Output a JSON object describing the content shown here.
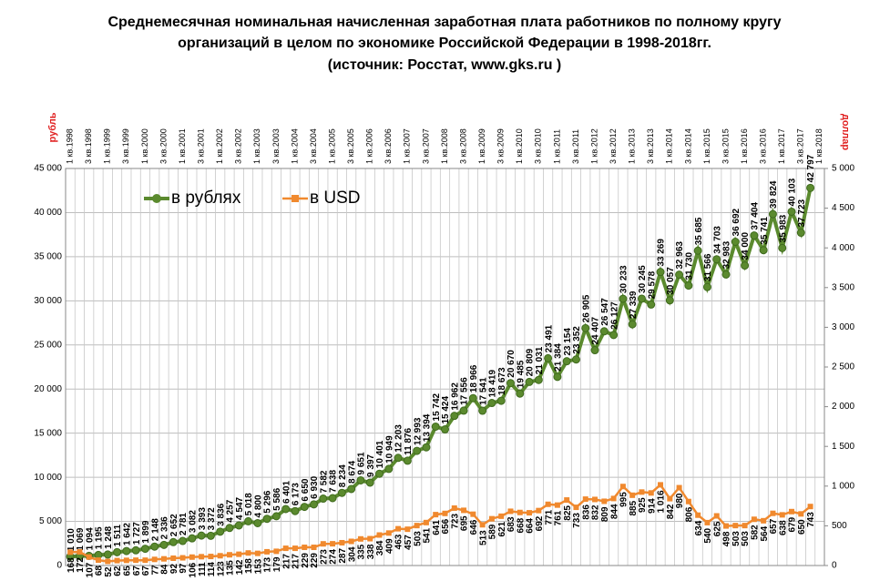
{
  "chart_data": {
    "type": "line",
    "title": [
      "Среднемесячная номинальная начисленная заработная  плата работников по полному кругу",
      "организаций в целом по экономике Российской Федерации в 1998-2018гг.",
      "(источник: Росстат,  www.gks.ru )"
    ],
    "ylabel": "рубль",
    "y2label": "доллар",
    "categories": [
      "1 кв.1998",
      null,
      "3 кв.1998",
      null,
      "1 кв.1999",
      null,
      "3 кв.1999",
      null,
      "1 кв.2000",
      null,
      "3 кв.2000",
      null,
      "1 кв.2001",
      null,
      "3 кв.2001",
      null,
      "1 кв.2002",
      null,
      "3 кв.2002",
      null,
      "1 кв.2003",
      null,
      "3 кв.2003",
      null,
      "1 кв.2004",
      null,
      "3 кв.2004",
      null,
      "1 кв.2005",
      null,
      "3 кв.2005",
      null,
      "1 кв.2006",
      null,
      "3 кв.2006",
      null,
      "1 кв.2007",
      null,
      "3 кв.2007",
      null,
      "1 кв.2008",
      null,
      "3 кв.2008",
      null,
      "1 кв.2009",
      null,
      "3 кв.2009",
      null,
      "1 кв.2010",
      null,
      "3 кв.2010",
      null,
      "1 кв.2011",
      null,
      "3 кв.2011",
      null,
      "1 кв.2012",
      null,
      "3 кв.2012",
      null,
      "1 кв.2013",
      null,
      "3 кв.2013",
      null,
      "1 кв.2014",
      null,
      "3 кв.2014",
      null,
      "1 кв.2015",
      null,
      "3 кв.2015",
      null,
      "1 кв.2016",
      null,
      "3 кв.2016",
      null,
      "1 кв.2017",
      null,
      "3 кв.2017",
      null,
      "1 кв.2018"
    ],
    "series": [
      {
        "name": "в рублях",
        "color": "#5b8a2e",
        "values": [
          1010,
          1069,
          1094,
          1195,
          1248,
          1511,
          1642,
          1727,
          1899,
          2148,
          2336,
          2652,
          2781,
          3082,
          3393,
          3372,
          3836,
          4257,
          4547,
          5018,
          4800,
          5296,
          5586,
          6401,
          6173,
          6650,
          6930,
          7582,
          7638,
          8234,
          8674,
          9651,
          9397,
          10401,
          10949,
          12203,
          11876,
          12993,
          13394,
          15742,
          15424,
          16962,
          17556,
          18966,
          17541,
          18419,
          18673,
          20670,
          19485,
          20809,
          21031,
          23491,
          21384,
          23154,
          23352,
          26905,
          24407,
          26547,
          26127,
          30233,
          27339,
          30245,
          29578,
          33269,
          30057,
          32963,
          31730,
          35685,
          31566,
          34703,
          32983,
          36692,
          34000,
          37404,
          35741,
          39824,
          35983,
          40103,
          37723,
          42797,
          null
        ],
        "value_labels": [
          "1 010",
          "1 069",
          "1 094",
          "1 195",
          "1 248",
          "1 511",
          "1 642",
          "1 727",
          "1 899",
          "2 148",
          "2 336",
          "2 652",
          "2 781",
          "3 082",
          "3 393",
          "3 372",
          "3 836",
          "4 257",
          "4 547",
          "5 018",
          "4 800",
          "5 296",
          "5 586",
          "6 401",
          "6 173",
          "6 650",
          "6 930",
          "7 582",
          "7 638",
          "8 234",
          "8 674",
          "9 651",
          "9 397",
          "10 401",
          "10 949",
          "12 203",
          "11 876",
          "12 993",
          "13 394",
          "15 742",
          "15 424",
          "16 962",
          "17 556",
          "18 966",
          "17 541",
          "18 419",
          "18 673",
          "20 670",
          "19 485",
          "20 809",
          "21 031",
          "23 491",
          "21 384",
          "23 154",
          "23 352",
          "26 905",
          "24 407",
          "26 547",
          "26 127",
          "30 233",
          "27 339",
          "30 245",
          "29 578",
          "33 269",
          "30 057",
          "32 963",
          "31 730",
          "35 685",
          "31 566",
          "34 703",
          "32 983",
          "36 692",
          "34 000",
          "37 404",
          "35 741",
          "39 824",
          "35 983",
          "40 103",
          "37 723",
          "42 797",
          null
        ]
      },
      {
        "name": "в USD",
        "color": "#f0892e",
        "axis": "y2",
        "values": [
          168,
          172,
          107,
          68,
          52,
          62,
          65,
          67,
          67,
          77,
          84,
          92,
          97,
          106,
          111,
          114,
          123,
          135,
          142,
          158,
          153,
          173,
          179,
          217,
          217,
          229,
          229,
          273,
          274,
          287,
          304,
          335,
          338,
          384,
          409,
          463,
          457,
          503,
          541,
          641,
          656,
          723,
          695,
          646,
          513,
          589,
          621,
          683,
          668,
          664,
          692,
          771,
          761,
          825,
          733,
          836,
          832,
          809,
          844,
          995,
          885,
          925,
          914,
          1016,
          842,
          980,
          806,
          634,
          540,
          625,
          498,
          503,
          503,
          582,
          564,
          657,
          638,
          679,
          650,
          743,
          null
        ],
        "value_labels": [
          "168",
          "172",
          "107",
          "68",
          "52",
          "62",
          "65",
          "67",
          "67",
          "77",
          "84",
          "92",
          "97",
          "106",
          "111",
          "114",
          "123",
          "135",
          "142",
          "158",
          "153",
          "173",
          "179",
          "217",
          "217",
          "229",
          "229",
          "273",
          "274",
          "287",
          "304",
          "335",
          "338",
          "384",
          "409",
          "463",
          "457",
          "503",
          "541",
          "641",
          "656",
          "723",
          "695",
          "646",
          "513",
          "589",
          "621",
          "683",
          "668",
          "664",
          "692",
          "771",
          "761",
          "825",
          "733",
          "836",
          "832",
          "809",
          "844",
          "995",
          "885",
          "925",
          "914",
          "1 016",
          "842",
          "980",
          "806",
          "634",
          "540",
          "625",
          "498",
          "503",
          "503",
          "582",
          "564",
          "657",
          "638",
          "679",
          "650",
          "743",
          null
        ]
      }
    ],
    "ylim": [
      0,
      45000
    ],
    "yticks": [
      0,
      {
        "value": 5000,
        "label": "5 000"
      },
      {
        "value": 10000,
        "label": "10 000"
      },
      {
        "value": 15000,
        "label": "15 000"
      },
      {
        "value": 20000,
        "label": "20 000"
      },
      {
        "value": 25000,
        "label": "25 000"
      },
      {
        "value": 30000,
        "label": "30 000"
      },
      {
        "value": 35000,
        "label": "35 000"
      },
      {
        "value": 40000,
        "label": "40 000"
      },
      {
        "value": 45000,
        "label": "45 000"
      }
    ],
    "y2lim": [
      0,
      5000
    ],
    "y2ticks": [
      0,
      500,
      {
        "value": 1000,
        "label": "1 000"
      },
      {
        "value": 1500,
        "label": "1 500"
      },
      {
        "value": 2000,
        "label": "2 000"
      },
      {
        "value": 2500,
        "label": "2 500"
      },
      {
        "value": 3000,
        "label": "3 000"
      },
      {
        "value": 3500,
        "label": "3 500"
      },
      {
        "value": 4000,
        "label": "4 000"
      },
      {
        "value": 4500,
        "label": "4 500"
      },
      {
        "value": 5000,
        "label": "5 000"
      }
    ],
    "grid": true,
    "legend": "top-left"
  }
}
